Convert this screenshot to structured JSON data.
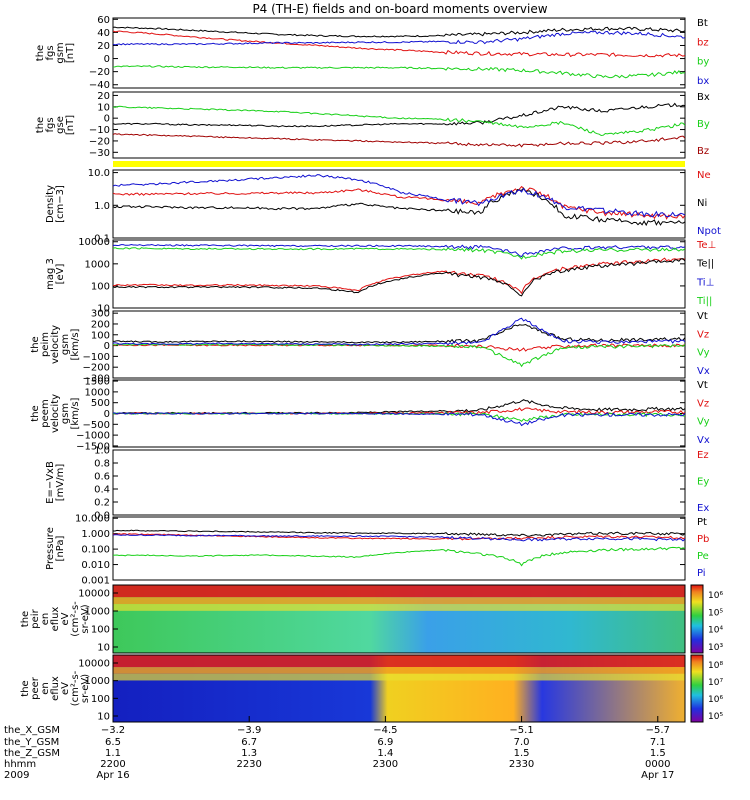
{
  "title": "P4 (TH-E) fields and on-board moments overview",
  "colors": {
    "black": "#000000",
    "red": "#e01010",
    "green": "#18d018",
    "blue": "#1010d0",
    "darkred": "#a00000",
    "yellow": "#ffff00"
  },
  "chart_data": [
    {
      "type": "line",
      "ylabel": [
        "the",
        "fgs",
        "gsm",
        "[nT]"
      ],
      "ylim": [
        -45,
        62
      ],
      "tick_labels": [
        "60",
        "40",
        "20",
        "0",
        "−20",
        "−40"
      ],
      "tick_values": [
        60,
        40,
        20,
        0,
        -20,
        -40
      ],
      "series": [
        {
          "name": "Bt",
          "color": "#000000",
          "values": [
            48,
            46,
            43,
            40,
            37,
            35,
            34,
            34,
            35,
            37,
            40,
            44,
            46,
            45,
            42
          ]
        },
        {
          "name": "bz",
          "color": "#e01010",
          "values": [
            42,
            38,
            33,
            28,
            24,
            20,
            16,
            13,
            10,
            8,
            7,
            6,
            6,
            5,
            5
          ]
        },
        {
          "name": "by",
          "color": "#18d018",
          "values": [
            -12,
            -12,
            -13,
            -13,
            -14,
            -14,
            -14,
            -14,
            -15,
            -16,
            -18,
            -22,
            -28,
            -26,
            -20
          ]
        },
        {
          "name": "bx",
          "color": "#1010d0",
          "values": [
            22,
            22,
            22,
            23,
            24,
            24,
            25,
            25,
            26,
            25,
            30,
            38,
            40,
            38,
            33
          ]
        }
      ]
    },
    {
      "type": "line",
      "ylabel": [
        "the",
        "fgs",
        "gse",
        "[nT]"
      ],
      "ylim": [
        -35,
        23
      ],
      "tick_labels": [
        "20",
        "10",
        "0",
        "−10",
        "−20",
        "−30"
      ],
      "tick_values": [
        20,
        10,
        0,
        -10,
        -20,
        -30
      ],
      "series": [
        {
          "name": "Bx",
          "color": "#000000",
          "values": [
            -5,
            -5,
            -6,
            -6,
            -7,
            -7,
            -6,
            -5,
            -5,
            -4,
            2,
            10,
            6,
            10,
            12
          ]
        },
        {
          "name": "By",
          "color": "#18d018",
          "values": [
            10,
            9,
            8,
            7,
            6,
            4,
            2,
            0,
            -1,
            -3,
            -8,
            -4,
            -15,
            -11,
            -5
          ]
        },
        {
          "name": "Bz",
          "color": "#a00000",
          "values": [
            -14,
            -15,
            -16,
            -17,
            -18,
            -19,
            -20,
            -21,
            -22,
            -23,
            -24,
            -22,
            -22,
            -20,
            -17
          ]
        }
      ]
    },
    {
      "type": "line",
      "ylabel": [
        "Density",
        "[cm−3]"
      ],
      "scale": "log",
      "ylim": [
        0.1,
        12
      ],
      "tick_labels": [
        "10.0",
        "1.0",
        "0.1"
      ],
      "tick_values": [
        10,
        1,
        0.1
      ],
      "series": [
        {
          "name": "Ne",
          "color": "#e01010",
          "values": [
            2.2,
            2.2,
            2.3,
            2.3,
            2.4,
            2.4,
            3,
            1.8,
            1.5,
            1.1,
            3.5,
            0.9,
            0.6,
            0.5,
            0.45
          ]
        },
        {
          "name": "Ni",
          "color": "#000000",
          "values": [
            0.9,
            0.9,
            0.85,
            0.85,
            0.8,
            0.8,
            1.1,
            0.8,
            0.7,
            0.6,
            3,
            0.5,
            0.35,
            0.3,
            0.3
          ]
        },
        {
          "name": "Npot",
          "color": "#1010d0",
          "values": [
            4,
            4.5,
            5.2,
            6,
            7,
            8.2,
            6,
            2.5,
            1.6,
            1.1,
            3,
            0.9,
            0.7,
            0.55,
            0.5
          ]
        }
      ]
    },
    {
      "type": "line",
      "ylabel": [
        "mag 3",
        "[eV]"
      ],
      "scale": "log",
      "ylim": [
        10,
        12000
      ],
      "tick_labels": [
        "10000",
        "1000",
        "100",
        "10"
      ],
      "tick_values": [
        10000,
        1000,
        100,
        10
      ],
      "series": [
        {
          "name": "Te⊥",
          "color": "#e01010",
          "values": [
            110,
            110,
            105,
            110,
            105,
            100,
            60,
            250,
            450,
            300,
            40,
            600,
            1000,
            1300,
            1800
          ]
        },
        {
          "name": "Te||",
          "color": "#000000",
          "values": [
            90,
            90,
            88,
            90,
            85,
            80,
            50,
            200,
            380,
            250,
            30,
            500,
            850,
            1100,
            1500
          ]
        },
        {
          "name": "Ti⊥",
          "color": "#1010d0",
          "values": [
            7000,
            7000,
            6800,
            6800,
            6500,
            6500,
            6600,
            6500,
            6200,
            5800,
            2500,
            5000,
            5500,
            5800,
            5500
          ]
        },
        {
          "name": "Ti||",
          "color": "#18d018",
          "values": [
            5000,
            5000,
            4800,
            4800,
            4700,
            4700,
            4800,
            4700,
            4500,
            4200,
            2000,
            3800,
            4200,
            4500,
            4300
          ]
        }
      ]
    },
    {
      "type": "line",
      "ylabel": [
        "the",
        "peim",
        "velocity",
        "gsm",
        "[km/s]"
      ],
      "ylim": [
        -300,
        320
      ],
      "tick_labels": [
        "300",
        "200",
        "100",
        "0",
        "−100",
        "−200",
        "−300"
      ],
      "tick_values": [
        300,
        200,
        100,
        0,
        -100,
        -200,
        -300
      ],
      "series": [
        {
          "name": "Vt",
          "color": "#000000",
          "values": [
            40,
            35,
            38,
            40,
            36,
            35,
            30,
            32,
            40,
            45,
            200,
            60,
            50,
            55,
            60
          ]
        },
        {
          "name": "Vz",
          "color": "#e01010",
          "values": [
            5,
            5,
            3,
            2,
            4,
            3,
            2,
            2,
            0,
            -5,
            -40,
            -5,
            0,
            2,
            3
          ]
        },
        {
          "name": "Vy",
          "color": "#18d018",
          "values": [
            10,
            10,
            8,
            10,
            8,
            5,
            5,
            0,
            -5,
            -10,
            -180,
            -20,
            -10,
            -5,
            0
          ]
        },
        {
          "name": "Vx",
          "color": "#1010d0",
          "values": [
            20,
            15,
            18,
            20,
            15,
            15,
            10,
            15,
            20,
            25,
            250,
            40,
            30,
            35,
            40
          ]
        }
      ]
    },
    {
      "type": "line",
      "ylabel": [
        "the",
        "peem",
        "velocity",
        "gsm",
        "[km/s]"
      ],
      "ylim": [
        -1550,
        1550
      ],
      "tick_labels": [
        "1500",
        "1000",
        "500",
        "0",
        "−500",
        "−1000",
        "−1500"
      ],
      "tick_values": [
        1500,
        1000,
        500,
        0,
        -500,
        -1000,
        -1500
      ],
      "series": [
        {
          "name": "Vt",
          "color": "#000000",
          "values": [
            20,
            20,
            20,
            25,
            20,
            25,
            40,
            80,
            120,
            150,
            600,
            250,
            180,
            200,
            220
          ]
        },
        {
          "name": "Vz",
          "color": "#e01010",
          "values": [
            0,
            0,
            0,
            5,
            0,
            5,
            10,
            20,
            30,
            40,
            200,
            80,
            60,
            70,
            80
          ]
        },
        {
          "name": "Vy",
          "color": "#18d018",
          "values": [
            0,
            0,
            0,
            0,
            0,
            0,
            -5,
            -10,
            -20,
            -30,
            -300,
            -60,
            -40,
            -50,
            -40
          ]
        },
        {
          "name": "Vx",
          "color": "#1010d0",
          "values": [
            0,
            0,
            0,
            0,
            0,
            0,
            -5,
            -15,
            -30,
            -40,
            -500,
            -80,
            -50,
            -60,
            -50
          ]
        }
      ]
    },
    {
      "type": "line",
      "ylabel": [
        "E=−VxB",
        "[mV/m]"
      ],
      "ylim": [
        0,
        1
      ],
      "tick_labels": [
        "1.0",
        "0.8",
        "0.6",
        "0.4",
        "0.2",
        "0.0"
      ],
      "tick_values": [
        1,
        0.8,
        0.6,
        0.4,
        0.2,
        0
      ],
      "series": [
        {
          "name": "Ez",
          "color": "#e01010",
          "values": []
        },
        {
          "name": "Ey",
          "color": "#18d018",
          "values": []
        },
        {
          "name": "Ex",
          "color": "#1010d0",
          "values": []
        }
      ]
    },
    {
      "type": "line",
      "ylabel": [
        "Pressure",
        "[nPa]"
      ],
      "scale": "log",
      "ylim": [
        0.001,
        12
      ],
      "tick_labels": [
        "10.000",
        "1.000",
        "0.100",
        "0.010",
        "0.001"
      ],
      "tick_values": [
        10,
        1,
        0.1,
        0.01,
        0.001
      ],
      "series": [
        {
          "name": "Pt",
          "color": "#000000",
          "values": [
            1.6,
            1.55,
            1.45,
            1.35,
            1.25,
            1.15,
            1.1,
            1.05,
            1.0,
            0.95,
            0.8,
            0.9,
            1.1,
            1.05,
            0.95
          ]
        },
        {
          "name": "Pb",
          "color": "#e01010",
          "values": [
            0.95,
            0.9,
            0.8,
            0.7,
            0.6,
            0.55,
            0.5,
            0.48,
            0.46,
            0.45,
            0.5,
            0.6,
            0.65,
            0.6,
            0.55
          ]
        },
        {
          "name": "Pe",
          "color": "#18d018",
          "values": [
            0.04,
            0.04,
            0.035,
            0.04,
            0.04,
            0.035,
            0.03,
            0.06,
            0.09,
            0.05,
            0.01,
            0.06,
            0.09,
            0.1,
            0.12
          ]
        },
        {
          "name": "Pi",
          "color": "#1010d0",
          "values": [
            0.8,
            0.8,
            0.75,
            0.75,
            0.7,
            0.7,
            0.7,
            0.65,
            0.6,
            0.5,
            0.4,
            0.45,
            0.5,
            0.45,
            0.4
          ]
        }
      ]
    },
    {
      "type": "heatmap",
      "ylabel": [
        "the",
        "peir",
        "en",
        "eflux",
        "eV",
        "(cm²-s-",
        "sr-eV)"
      ],
      "tick_labels": [
        "10000",
        "1000",
        "100",
        "10"
      ],
      "colorbar_labels": [
        "10⁶",
        "10⁵",
        "10⁴",
        "10³"
      ]
    },
    {
      "type": "heatmap",
      "ylabel": [
        "the",
        "peer",
        "en",
        "eflux",
        "eV",
        "(cm²-s-",
        "sr-eV)"
      ],
      "tick_labels": [
        "10000",
        "1000",
        "100",
        "10"
      ],
      "colorbar_labels": [
        "10⁸",
        "10⁷",
        "10⁶",
        "10⁵"
      ]
    }
  ],
  "xaxis": {
    "row_labels": [
      "the_X_GSM",
      "the_Y_GSM",
      "the_Z_GSM",
      "hhmm",
      "2009"
    ],
    "ticks": [
      {
        "frac": 0.0,
        "rows": [
          "−3.2",
          "6.5",
          "1.1",
          "2200",
          "Apr 16"
        ]
      },
      {
        "frac": 0.2381,
        "rows": [
          "−3.9",
          "6.7",
          "1.3",
          "2230",
          ""
        ]
      },
      {
        "frac": 0.4762,
        "rows": [
          "−4.5",
          "6.9",
          "1.4",
          "2300",
          ""
        ]
      },
      {
        "frac": 0.7143,
        "rows": [
          "−5.1",
          "7.0",
          "1.5",
          "2330",
          ""
        ]
      },
      {
        "frac": 0.9524,
        "rows": [
          "−5.7",
          "7.1",
          "1.5",
          "0000",
          "Apr 17"
        ]
      }
    ]
  }
}
